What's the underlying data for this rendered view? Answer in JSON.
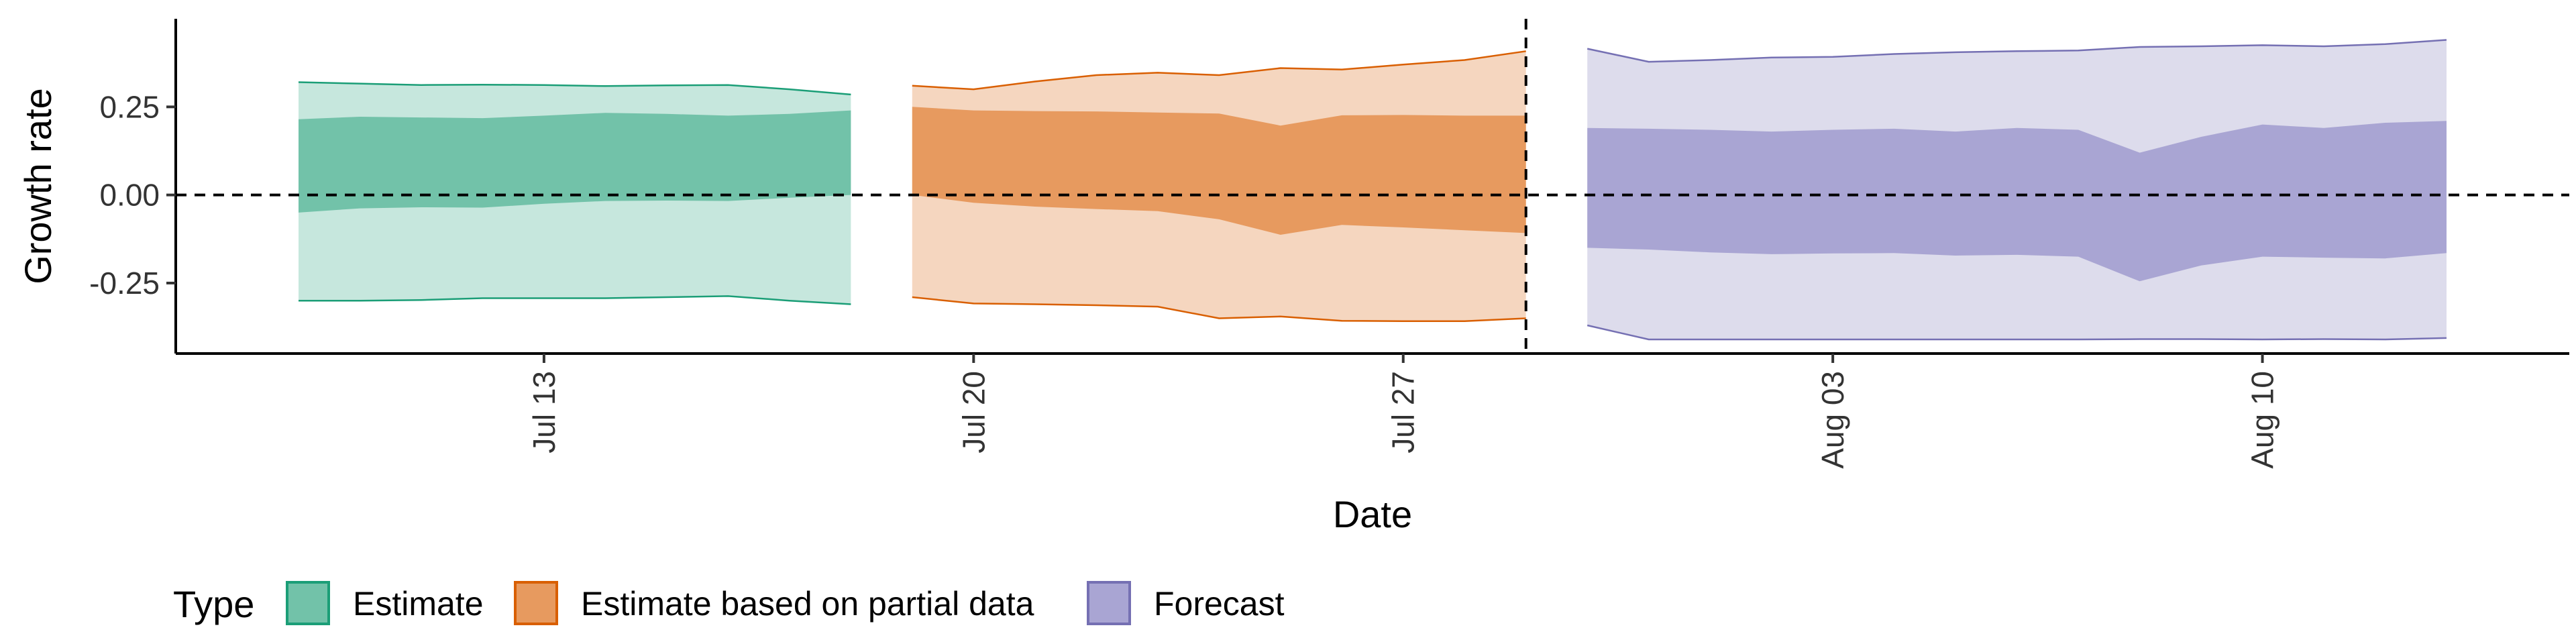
{
  "chart_data": {
    "type": "area",
    "xlabel": "Date",
    "ylabel": "Growth rate",
    "xlim": [
      "2020-07-07",
      "2020-08-15"
    ],
    "ylim": [
      -0.45,
      0.5
    ],
    "x_ticks": [
      {
        "date": "2020-07-13",
        "label": "Jul 13"
      },
      {
        "date": "2020-07-20",
        "label": "Jul 20"
      },
      {
        "date": "2020-07-27",
        "label": "Jul 27"
      },
      {
        "date": "2020-08-03",
        "label": "Aug 03"
      },
      {
        "date": "2020-08-10",
        "label": "Aug 10"
      }
    ],
    "y_ticks": [
      {
        "value": 0.25,
        "label": "0.25"
      },
      {
        "value": 0.0,
        "label": "0.00"
      },
      {
        "value": -0.25,
        "label": "-0.25"
      }
    ],
    "hline": 0,
    "vline": "2020-07-29",
    "grid": false,
    "legend_title": "Type",
    "legend_position": "bottom",
    "series": [
      {
        "name": "Estimate",
        "color": "#1b9e77",
        "fill": "#72c2a9",
        "fill_light": "#c6e7dd",
        "x": [
          "2020-07-09",
          "2020-07-10",
          "2020-07-11",
          "2020-07-12",
          "2020-07-13",
          "2020-07-14",
          "2020-07-15",
          "2020-07-16",
          "2020-07-17",
          "2020-07-18"
        ],
        "upper90": [
          0.32,
          0.316,
          0.312,
          0.313,
          0.312,
          0.309,
          0.311,
          0.312,
          0.3,
          0.285
        ],
        "upper50": [
          0.215,
          0.222,
          0.22,
          0.218,
          0.225,
          0.233,
          0.23,
          0.225,
          0.23,
          0.24
        ],
        "lower50": [
          -0.05,
          -0.038,
          -0.035,
          -0.036,
          -0.025,
          -0.017,
          -0.016,
          -0.017,
          -0.008,
          0.0
        ],
        "lower90": [
          -0.3,
          -0.3,
          -0.298,
          -0.293,
          -0.293,
          -0.293,
          -0.29,
          -0.287,
          -0.3,
          -0.31
        ]
      },
      {
        "name": "Estimate based on partial data",
        "color": "#d95f02",
        "fill": "#e79a5f",
        "fill_light": "#f5d6bf",
        "x": [
          "2020-07-19",
          "2020-07-20",
          "2020-07-21",
          "2020-07-22",
          "2020-07-23",
          "2020-07-24",
          "2020-07-25",
          "2020-07-26",
          "2020-07-27",
          "2020-07-28",
          "2020-07-29"
        ],
        "upper90": [
          0.31,
          0.3,
          0.322,
          0.34,
          0.347,
          0.34,
          0.36,
          0.356,
          0.37,
          0.383,
          0.408
        ],
        "upper50": [
          0.25,
          0.24,
          0.238,
          0.237,
          0.234,
          0.231,
          0.197,
          0.226,
          0.227,
          0.225,
          0.225
        ],
        "lower50": [
          0.0,
          -0.022,
          -0.033,
          -0.04,
          -0.046,
          -0.069,
          -0.113,
          -0.085,
          -0.092,
          -0.1,
          -0.108
        ],
        "lower90": [
          -0.29,
          -0.308,
          -0.31,
          -0.313,
          -0.317,
          -0.35,
          -0.345,
          -0.357,
          -0.358,
          -0.358,
          -0.35
        ]
      },
      {
        "name": "Forecast",
        "color": "#7570b3",
        "fill": "#a9a5d3",
        "fill_light": "#dddcec",
        "x": [
          "2020-07-30",
          "2020-07-31",
          "2020-08-01",
          "2020-08-02",
          "2020-08-03",
          "2020-08-04",
          "2020-08-05",
          "2020-08-06",
          "2020-08-07",
          "2020-08-08",
          "2020-08-09",
          "2020-08-10",
          "2020-08-11",
          "2020-08-12",
          "2020-08-13"
        ],
        "upper90": [
          0.415,
          0.378,
          0.383,
          0.39,
          0.392,
          0.4,
          0.405,
          0.408,
          0.41,
          0.42,
          0.422,
          0.425,
          0.422,
          0.428,
          0.44
        ],
        "upper50": [
          0.19,
          0.188,
          0.185,
          0.18,
          0.185,
          0.188,
          0.18,
          0.19,
          0.185,
          0.12,
          0.165,
          0.2,
          0.19,
          0.205,
          0.21
        ],
        "lower50": [
          -0.15,
          -0.155,
          -0.163,
          -0.168,
          -0.166,
          -0.165,
          -0.172,
          -0.17,
          -0.175,
          -0.245,
          -0.2,
          -0.175,
          -0.178,
          -0.18,
          -0.165
        ],
        "lower90": [
          -0.37,
          -0.41,
          -0.41,
          -0.41,
          -0.41,
          -0.41,
          -0.41,
          -0.41,
          -0.41,
          -0.409,
          -0.409,
          -0.41,
          -0.409,
          -0.41,
          -0.406
        ]
      }
    ]
  }
}
